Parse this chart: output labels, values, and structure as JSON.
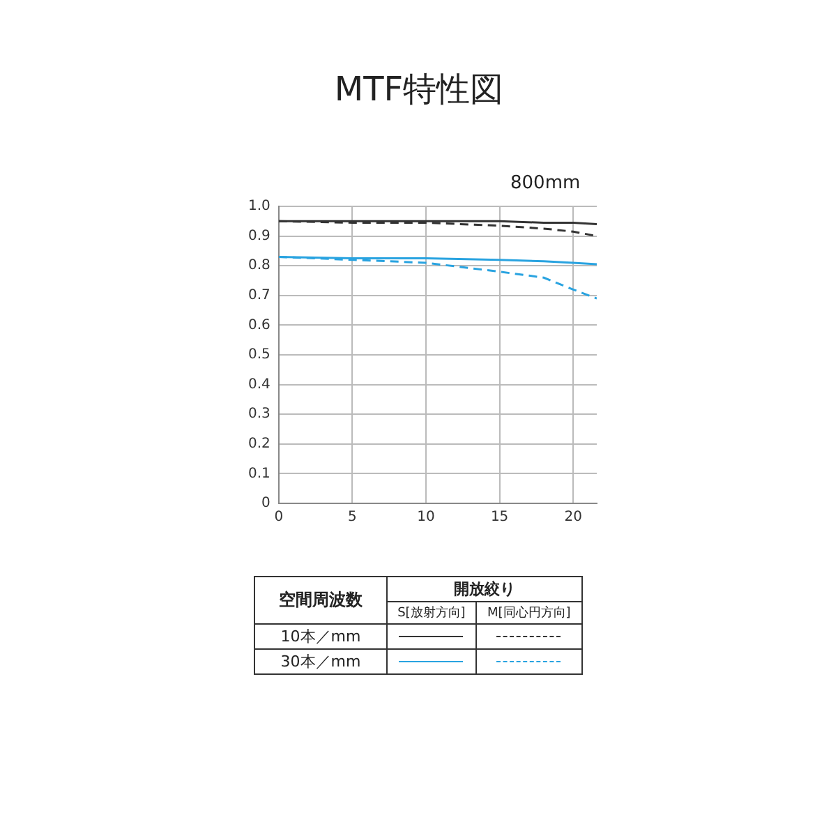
{
  "chart_data": {
    "type": "line",
    "title": "MTF特性図",
    "annotations": [
      "800mm",
      "空間周波数",
      "開放絞り",
      "S[放射方向]",
      "M[同心円方向]",
      "10本／mm",
      "30本／mm"
    ],
    "x": [
      0,
      5,
      10,
      15,
      18,
      20,
      21.6
    ],
    "series": [
      {
        "color": "#333333",
        "line_style": "solid",
        "values": [
          0.95,
          0.95,
          0.95,
          0.95,
          0.945,
          0.945,
          0.94
        ]
      },
      {
        "color": "#333333",
        "line_style": "dashed",
        "values": [
          0.95,
          0.945,
          0.945,
          0.935,
          0.925,
          0.915,
          0.9
        ]
      },
      {
        "color": "#29a3e0",
        "line_style": "solid",
        "values": [
          0.83,
          0.825,
          0.825,
          0.82,
          0.815,
          0.81,
          0.805
        ]
      },
      {
        "color": "#29a3e0",
        "line_style": "dashed",
        "values": [
          0.83,
          0.82,
          0.81,
          0.78,
          0.76,
          0.72,
          0.69
        ]
      }
    ],
    "xlim": [
      0,
      21.6
    ],
    "xticks": [
      0,
      5,
      10,
      15,
      20
    ],
    "ylim": [
      0,
      1
    ],
    "yticks": [
      0,
      0.1,
      0.2,
      0.3,
      0.4,
      0.5,
      0.6,
      0.7,
      0.8,
      0.9,
      {
        "value": 1,
        "label": "1.0"
      }
    ],
    "grid": true,
    "marker": "none"
  }
}
